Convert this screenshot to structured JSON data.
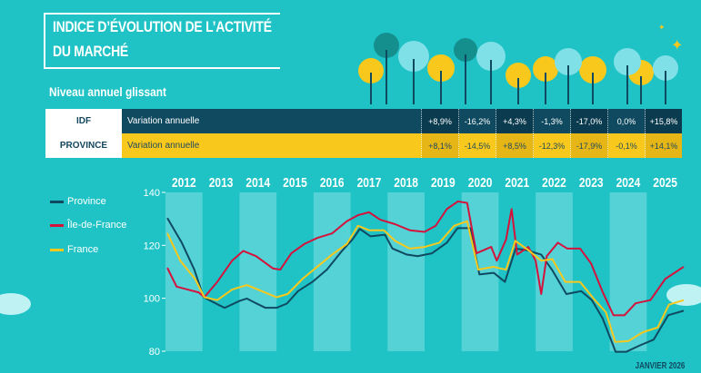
{
  "header": {
    "title_line1": "INDICE D’ÉVOLUTION DE L’ACTIVITÉ",
    "title_line2": "DU MARCHÉ",
    "subtitle": "Niveau annuel glissant"
  },
  "table": {
    "rows": [
      {
        "label": "IDF",
        "name": "Variation annuelle",
        "values": [
          "+8,9%",
          "-16,2%",
          "+4,3%",
          "-1,3%",
          "-17,0%",
          "0,0%",
          "+15,8%"
        ]
      },
      {
        "label": "PROVINCE",
        "name": "Variation annuelle",
        "values": [
          "+8,1%",
          "-14,5%",
          "+8,5%",
          "-12,3%",
          "-17,9%",
          "-0,1%",
          "+14,1%"
        ]
      }
    ]
  },
  "footer": "JANVIER 2026",
  "colors": {
    "bg": "#1fc3c6",
    "province": "#0f4a60",
    "idf": "#d4123c",
    "france": "#f9c81c"
  },
  "chart_data": {
    "type": "line",
    "title": "",
    "xlabel": "",
    "ylabel": "",
    "ylim": [
      80,
      140
    ],
    "xlim": [
      2012,
      2026
    ],
    "yticks": [
      "80",
      "100",
      "120",
      "140"
    ],
    "year_labels": [
      "2012",
      "2013",
      "2014",
      "2015",
      "2016",
      "2017",
      "2018",
      "2019",
      "2020",
      "2021",
      "2022",
      "2023",
      "2024",
      "2025"
    ],
    "legend_position": "left",
    "series": [
      {
        "name": "Province",
        "color": "#0f4a60",
        "points": [
          [
            2012.05,
            130.3
          ],
          [
            2012.44,
            121
          ],
          [
            2012.78,
            110.8
          ],
          [
            2013.03,
            100.4
          ],
          [
            2013.42,
            97.6
          ],
          [
            2013.6,
            96.4
          ],
          [
            2014.0,
            99
          ],
          [
            2014.2,
            99.9
          ],
          [
            2014.45,
            98.1
          ],
          [
            2014.7,
            96.4
          ],
          [
            2015.0,
            96.4
          ],
          [
            2015.28,
            98
          ],
          [
            2015.58,
            102.7
          ],
          [
            2015.97,
            106.2
          ],
          [
            2016.36,
            110.8
          ],
          [
            2016.75,
            117.6
          ],
          [
            2017.05,
            122.2
          ],
          [
            2017.25,
            126.2
          ],
          [
            2017.54,
            123.4
          ],
          [
            2017.93,
            124
          ],
          [
            2018.13,
            118.8
          ],
          [
            2018.52,
            116.5
          ],
          [
            2018.81,
            115.9
          ],
          [
            2019.2,
            117
          ],
          [
            2019.6,
            121
          ],
          [
            2019.89,
            126.5
          ],
          [
            2020.23,
            126.5
          ],
          [
            2020.48,
            109
          ],
          [
            2020.87,
            109.6
          ],
          [
            2021.17,
            106.2
          ],
          [
            2021.46,
            118.8
          ],
          [
            2021.75,
            118.2
          ],
          [
            2022.15,
            116.5
          ],
          [
            2022.44,
            110.8
          ],
          [
            2022.83,
            101.6
          ],
          [
            2023.23,
            102.7
          ],
          [
            2023.52,
            99.3
          ],
          [
            2023.81,
            92.4
          ],
          [
            2024.16,
            79.8
          ],
          [
            2024.45,
            79.8
          ],
          [
            2024.8,
            82.1
          ],
          [
            2025.19,
            84.4
          ],
          [
            2025.58,
            93.6
          ],
          [
            2026.0,
            95.3
          ]
        ]
      },
      {
        "name": "Île-de-France",
        "color": "#d4123c",
        "points": [
          [
            2012.05,
            111.5
          ],
          [
            2012.3,
            104.4
          ],
          [
            2012.6,
            103.3
          ],
          [
            2012.9,
            102.2
          ],
          [
            2013.05,
            100.4
          ],
          [
            2013.4,
            106.2
          ],
          [
            2013.8,
            114.2
          ],
          [
            2014.1,
            117.9
          ],
          [
            2014.45,
            115.9
          ],
          [
            2014.9,
            111.3
          ],
          [
            2015.1,
            110.8
          ],
          [
            2015.4,
            117
          ],
          [
            2015.75,
            120.5
          ],
          [
            2016.1,
            122.8
          ],
          [
            2016.5,
            124.5
          ],
          [
            2016.9,
            129.1
          ],
          [
            2017.2,
            131.4
          ],
          [
            2017.5,
            132.5
          ],
          [
            2017.8,
            129.7
          ],
          [
            2018.2,
            128
          ],
          [
            2018.6,
            125.7
          ],
          [
            2019.0,
            125.1
          ],
          [
            2019.3,
            127.4
          ],
          [
            2019.6,
            133.7
          ],
          [
            2019.9,
            136.6
          ],
          [
            2020.15,
            136
          ],
          [
            2020.4,
            117
          ],
          [
            2020.8,
            119.4
          ],
          [
            2020.95,
            114.2
          ],
          [
            2021.2,
            122.2
          ],
          [
            2021.35,
            133.7
          ],
          [
            2021.5,
            116.5
          ],
          [
            2021.8,
            119.4
          ],
          [
            2022.0,
            114.2
          ],
          [
            2022.15,
            101.6
          ],
          [
            2022.3,
            115.9
          ],
          [
            2022.6,
            121
          ],
          [
            2022.85,
            118.8
          ],
          [
            2023.2,
            118.8
          ],
          [
            2023.5,
            113.1
          ],
          [
            2023.8,
            102.7
          ],
          [
            2024.1,
            93.6
          ],
          [
            2024.4,
            93.6
          ],
          [
            2024.7,
            98.1
          ],
          [
            2025.1,
            99.3
          ],
          [
            2025.5,
            107.3
          ],
          [
            2026.0,
            111.9
          ]
        ]
      },
      {
        "name": "France",
        "color": "#f9c81c",
        "points": [
          [
            2012.05,
            124.6
          ],
          [
            2012.4,
            114.2
          ],
          [
            2012.8,
            107.3
          ],
          [
            2013.05,
            100.4
          ],
          [
            2013.4,
            99.3
          ],
          [
            2013.8,
            103.3
          ],
          [
            2014.2,
            105
          ],
          [
            2014.6,
            102.7
          ],
          [
            2015.0,
            100.4
          ],
          [
            2015.3,
            101.6
          ],
          [
            2015.7,
            107.3
          ],
          [
            2016.1,
            111.9
          ],
          [
            2016.5,
            116.5
          ],
          [
            2016.9,
            120.5
          ],
          [
            2017.2,
            127.4
          ],
          [
            2017.5,
            125.7
          ],
          [
            2017.9,
            125.7
          ],
          [
            2018.2,
            121.7
          ],
          [
            2018.6,
            118.8
          ],
          [
            2019.0,
            119.4
          ],
          [
            2019.4,
            121
          ],
          [
            2019.8,
            127.4
          ],
          [
            2020.15,
            129.1
          ],
          [
            2020.45,
            110.8
          ],
          [
            2020.85,
            111.9
          ],
          [
            2021.2,
            110.8
          ],
          [
            2021.45,
            121.7
          ],
          [
            2021.8,
            118.2
          ],
          [
            2022.15,
            114.2
          ],
          [
            2022.45,
            114.8
          ],
          [
            2022.8,
            106.2
          ],
          [
            2023.2,
            106.2
          ],
          [
            2023.6,
            99.3
          ],
          [
            2023.9,
            94.7
          ],
          [
            2024.15,
            83.5
          ],
          [
            2024.5,
            83.8
          ],
          [
            2024.9,
            87.2
          ],
          [
            2025.3,
            89
          ],
          [
            2025.6,
            97.6
          ],
          [
            2026.0,
            99.3
          ]
        ]
      }
    ]
  }
}
